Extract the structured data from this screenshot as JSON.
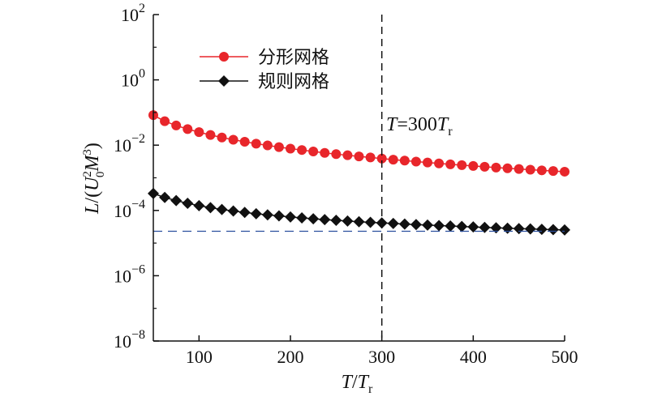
{
  "chart_data": {
    "type": "line",
    "xlabel": {
      "main": "T",
      "slash": "/",
      "second": "T",
      "sub": "r"
    },
    "ylabel": {
      "pre": "L",
      "open": "/(",
      "u": "U",
      "sup2": "2",
      "sub0": "0",
      "m": "M",
      "sup3": "3",
      "close": ")"
    },
    "x_ticks": [
      "100",
      "200",
      "300",
      "400",
      "500"
    ],
    "x_tick_values": [
      100,
      200,
      300,
      400,
      500
    ],
    "y_ticks": [
      {
        "base": "10",
        "exp": "2",
        "value": 2
      },
      {
        "base": "10",
        "exp": "0",
        "value": 0
      },
      {
        "base": "10",
        "exp": "−2",
        "value": -2
      },
      {
        "base": "10",
        "exp": "−4",
        "value": -4
      },
      {
        "base": "10",
        "exp": "−6",
        "value": -6
      },
      {
        "base": "10",
        "exp": "−8",
        "value": -8
      }
    ],
    "xlim": [
      50,
      500
    ],
    "ylim": [
      1e-08,
      100
    ],
    "yscale": "log",
    "legend_position": "top-left",
    "annotation": {
      "var": "T",
      "eq": "=300",
      "var2": "T",
      "sub": "r",
      "x": 300
    },
    "reference_line": {
      "y": 2.3e-05,
      "color": "#2a4f9e"
    },
    "x": [
      50,
      62.5,
      75,
      87.5,
      100,
      112.5,
      125,
      137.5,
      150,
      162.5,
      175,
      187.5,
      200,
      212.5,
      225,
      237.5,
      250,
      262.5,
      275,
      287.5,
      300,
      312.5,
      325,
      337.5,
      350,
      362.5,
      375,
      387.5,
      400,
      412.5,
      425,
      437.5,
      450,
      462.5,
      475,
      487.5,
      500
    ],
    "series": [
      {
        "name": "分形网格",
        "color": "#e8262b",
        "marker": "circle",
        "values": [
          0.083,
          0.054,
          0.04,
          0.031,
          0.025,
          0.0205,
          0.0172,
          0.0147,
          0.0127,
          0.0111,
          0.0098,
          0.0087,
          0.0078,
          0.0071,
          0.0064,
          0.0058,
          0.0053,
          0.0049,
          0.0045,
          0.0042,
          0.00388,
          0.0036,
          0.00336,
          0.00314,
          0.00294,
          0.00276,
          0.00259,
          0.00244,
          0.0023,
          0.00218,
          0.00206,
          0.00196,
          0.00186,
          0.00177,
          0.00169,
          0.00161,
          0.00154
        ]
      },
      {
        "name": "规则网格",
        "color": "#111111",
        "marker": "diamond",
        "values": [
          0.00033,
          0.00025,
          0.0002,
          0.000165,
          0.00014,
          0.000122,
          0.000107,
          9.6e-05,
          8.7e-05,
          7.9e-05,
          7.3e-05,
          6.8e-05,
          6.3e-05,
          5.9e-05,
          5.55e-05,
          5.25e-05,
          4.98e-05,
          4.74e-05,
          4.52e-05,
          4.32e-05,
          4.15e-05,
          3.98e-05,
          3.83e-05,
          3.69e-05,
          3.56e-05,
          3.44e-05,
          3.33e-05,
          3.22e-05,
          3.12e-05,
          3.03e-05,
          2.94e-05,
          2.86e-05,
          2.78e-05,
          2.71e-05,
          2.64e-05,
          2.58e-05,
          2.52e-05
        ]
      }
    ]
  }
}
